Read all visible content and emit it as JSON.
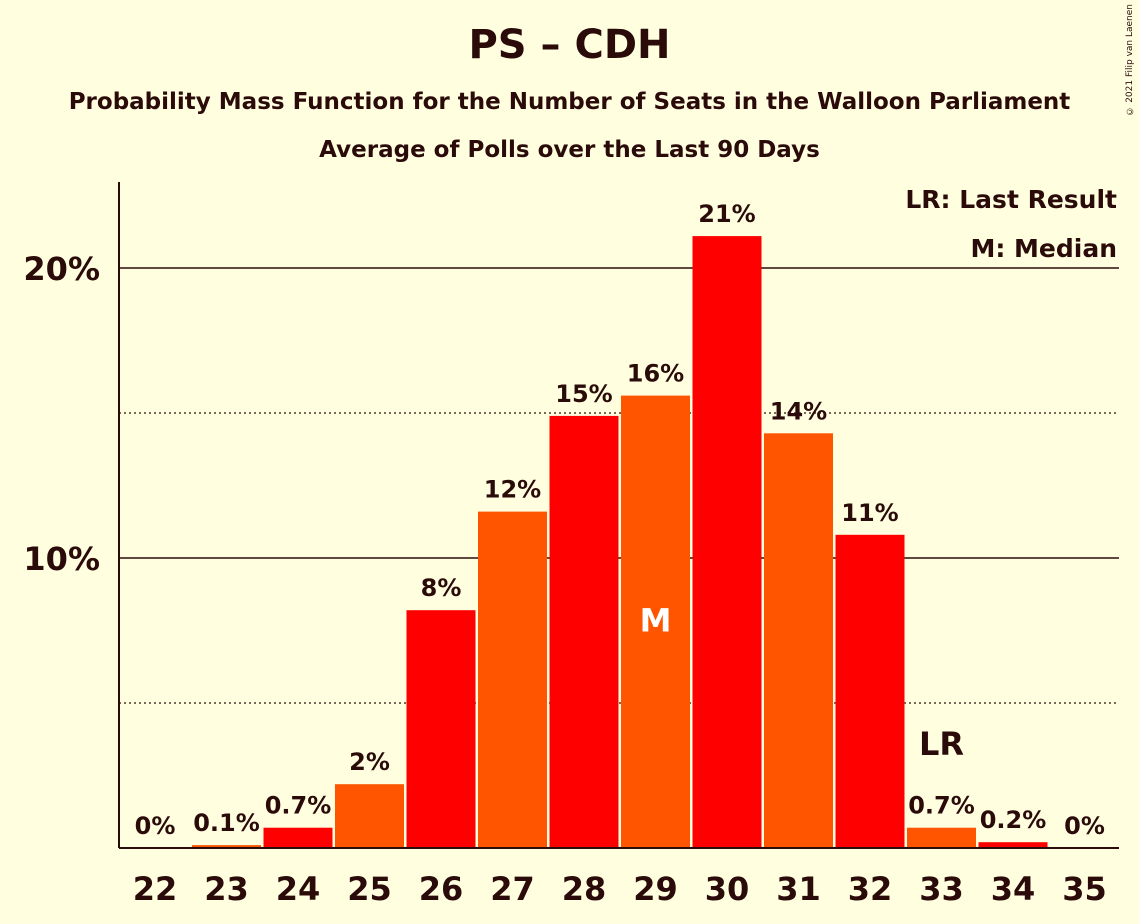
{
  "title": "PS – CDH",
  "subtitle": "Probability Mass Function for the Number of Seats in the Walloon Parliament",
  "subtitle2": "Average of Polls over the Last 90 Days",
  "copyright": "© 2021 Filip van Laenen",
  "legend": {
    "last_result": "LR: Last Result",
    "median": "M: Median"
  },
  "colors": {
    "background": "#ffffe0",
    "bar_red": "#ff0000",
    "bar_orange": "#ff5500",
    "text": "#2b0a0a"
  },
  "chart_data": {
    "type": "bar",
    "categories": [
      "22",
      "23",
      "24",
      "25",
      "26",
      "27",
      "28",
      "29",
      "30",
      "31",
      "32",
      "33",
      "34",
      "35"
    ],
    "values": [
      0,
      0.1,
      0.7,
      2.2,
      8.2,
      11.6,
      14.9,
      15.6,
      21.1,
      14.3,
      10.8,
      0.7,
      0.2,
      0
    ],
    "labels": [
      "0%",
      "0.1%",
      "0.7%",
      "2%",
      "8%",
      "12%",
      "15%",
      "16%",
      "21%",
      "14%",
      "11%",
      "0.7%",
      "0.2%",
      "0%"
    ],
    "bar_colors": [
      "red",
      "orange",
      "red",
      "orange",
      "red",
      "orange",
      "red",
      "orange",
      "red",
      "orange",
      "red",
      "orange",
      "red",
      "orange"
    ],
    "median_category": "29",
    "median_marker": "M",
    "last_result_category": "33",
    "last_result_marker": "LR",
    "y_ticks": [
      {
        "value": 10,
        "label": "10%"
      },
      {
        "value": 20,
        "label": "20%"
      }
    ],
    "y_minor_ticks": [
      5,
      15
    ],
    "ylim": [
      0,
      23
    ],
    "grid": true,
    "legend_position": "top-right"
  }
}
